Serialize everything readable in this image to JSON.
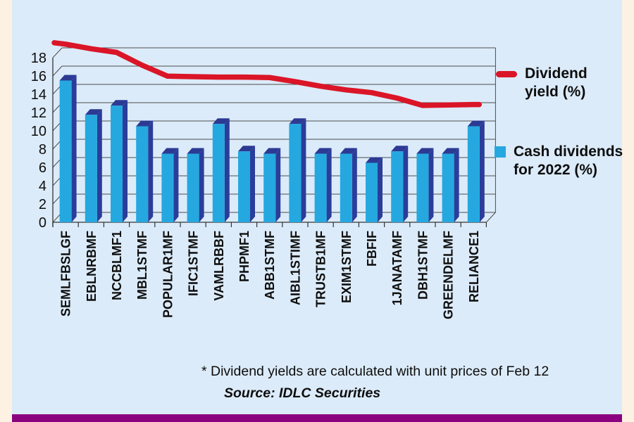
{
  "page": {
    "background": "#fcf1e2",
    "panel_color": "#dcebf9",
    "accent_bar_color": "#8c0180"
  },
  "chart_data": {
    "type": "combo-bar-line",
    "style": "3d",
    "categories": [
      "SEMLFBSLGF",
      "EBLNRBMF",
      "NCCBLMF1",
      "MBL1STMF",
      "POPULAR1MF",
      "IFIC1STMF",
      "VAMLRBBF",
      "PHPMF1",
      "ABB1STMF",
      "AIBL1STIMF",
      "TRUSTB1MF",
      "EXIM1STMF",
      "FBFIF",
      "1JANATAMF",
      "DBH1STMF",
      "GREENDELMF",
      "RELIANCE1"
    ],
    "series": [
      {
        "name": "Dividend yield (%)",
        "type": "line",
        "color": "#da1527",
        "values": [
          18.4,
          17.9,
          17.5,
          16.1,
          14.9,
          14.85,
          14.8,
          14.8,
          14.75,
          14.3,
          13.8,
          13.4,
          13.1,
          12.5,
          11.7,
          11.75,
          11.8
        ]
      },
      {
        "name": "Cash dividends for 2022 (%)",
        "type": "bar",
        "color": "#25a8e0",
        "color_top": "#2c3a94",
        "color_side": "#2a3d9b",
        "values": [
          15.5,
          11.75,
          12.75,
          10.5,
          7.5,
          7.5,
          10.75,
          7.75,
          7.5,
          10.75,
          7.5,
          7.5,
          6.5,
          7.75,
          7.5,
          7.5,
          10.5
        ]
      }
    ],
    "ylim": [
      0,
      18
    ],
    "ytick_step": 2,
    "grid": true,
    "grid_color": "#4d4d4d",
    "axis_color": "#333333",
    "legend_position": "right",
    "title": "",
    "xlabel": "",
    "ylabel": ""
  },
  "legend": {
    "line_label": "Dividend\nyield (%)",
    "bar_label": "Cash dividends\nfor 2022 (%)"
  },
  "footnote": {
    "note": "* Dividend yields are calculated with unit prices of Feb 12",
    "source": "Source: IDLC Securities"
  }
}
